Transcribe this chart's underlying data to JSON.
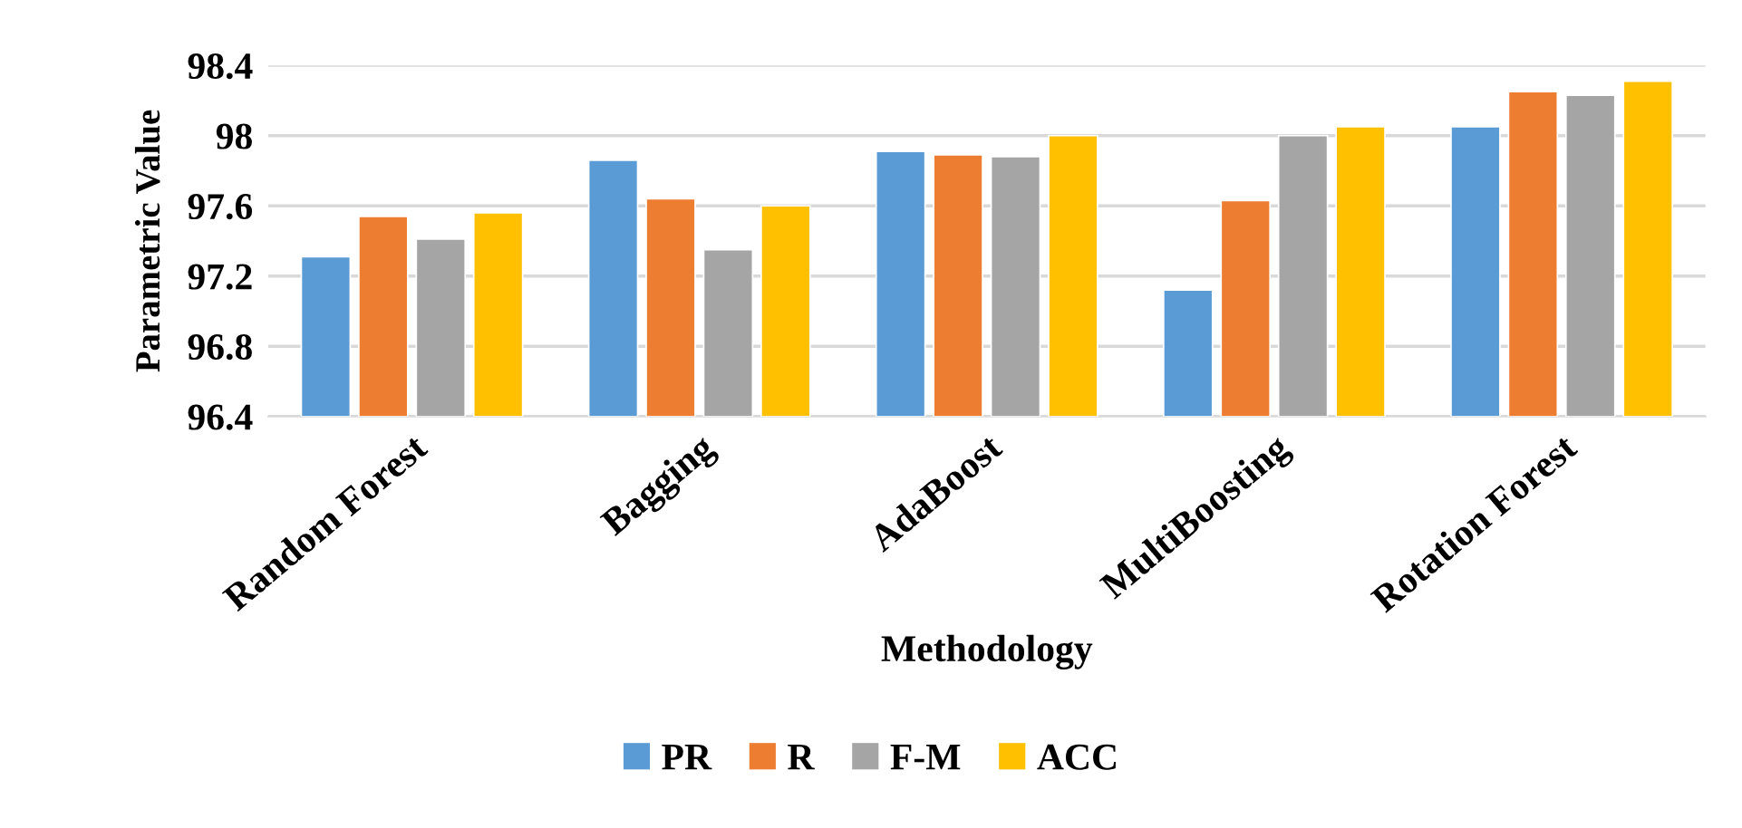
{
  "chart_data": {
    "type": "bar",
    "xlabel": "Methodology",
    "ylabel": "Parametric Value",
    "categories": [
      "Random Forest",
      "Bagging",
      "AdaBoost",
      "MultiBoosting",
      "Rotation Forest"
    ],
    "series": [
      {
        "name": "PR",
        "color": "#5b9bd5",
        "values": [
          97.31,
          97.86,
          97.91,
          97.12,
          98.05
        ]
      },
      {
        "name": "R",
        "color": "#ed7d31",
        "values": [
          97.54,
          97.64,
          97.89,
          97.63,
          98.25
        ]
      },
      {
        "name": "F-M",
        "color": "#a5a5a5",
        "values": [
          97.41,
          97.35,
          97.88,
          98.0,
          98.23
        ]
      },
      {
        "name": "ACC",
        "color": "#ffc000",
        "values": [
          97.56,
          97.6,
          98.0,
          98.05,
          98.31
        ]
      }
    ],
    "ylim": [
      96.4,
      98.4
    ],
    "yticks": [
      96.4,
      96.8,
      97.2,
      97.6,
      98,
      98.4
    ],
    "grid": "y",
    "legend": "bottom"
  }
}
